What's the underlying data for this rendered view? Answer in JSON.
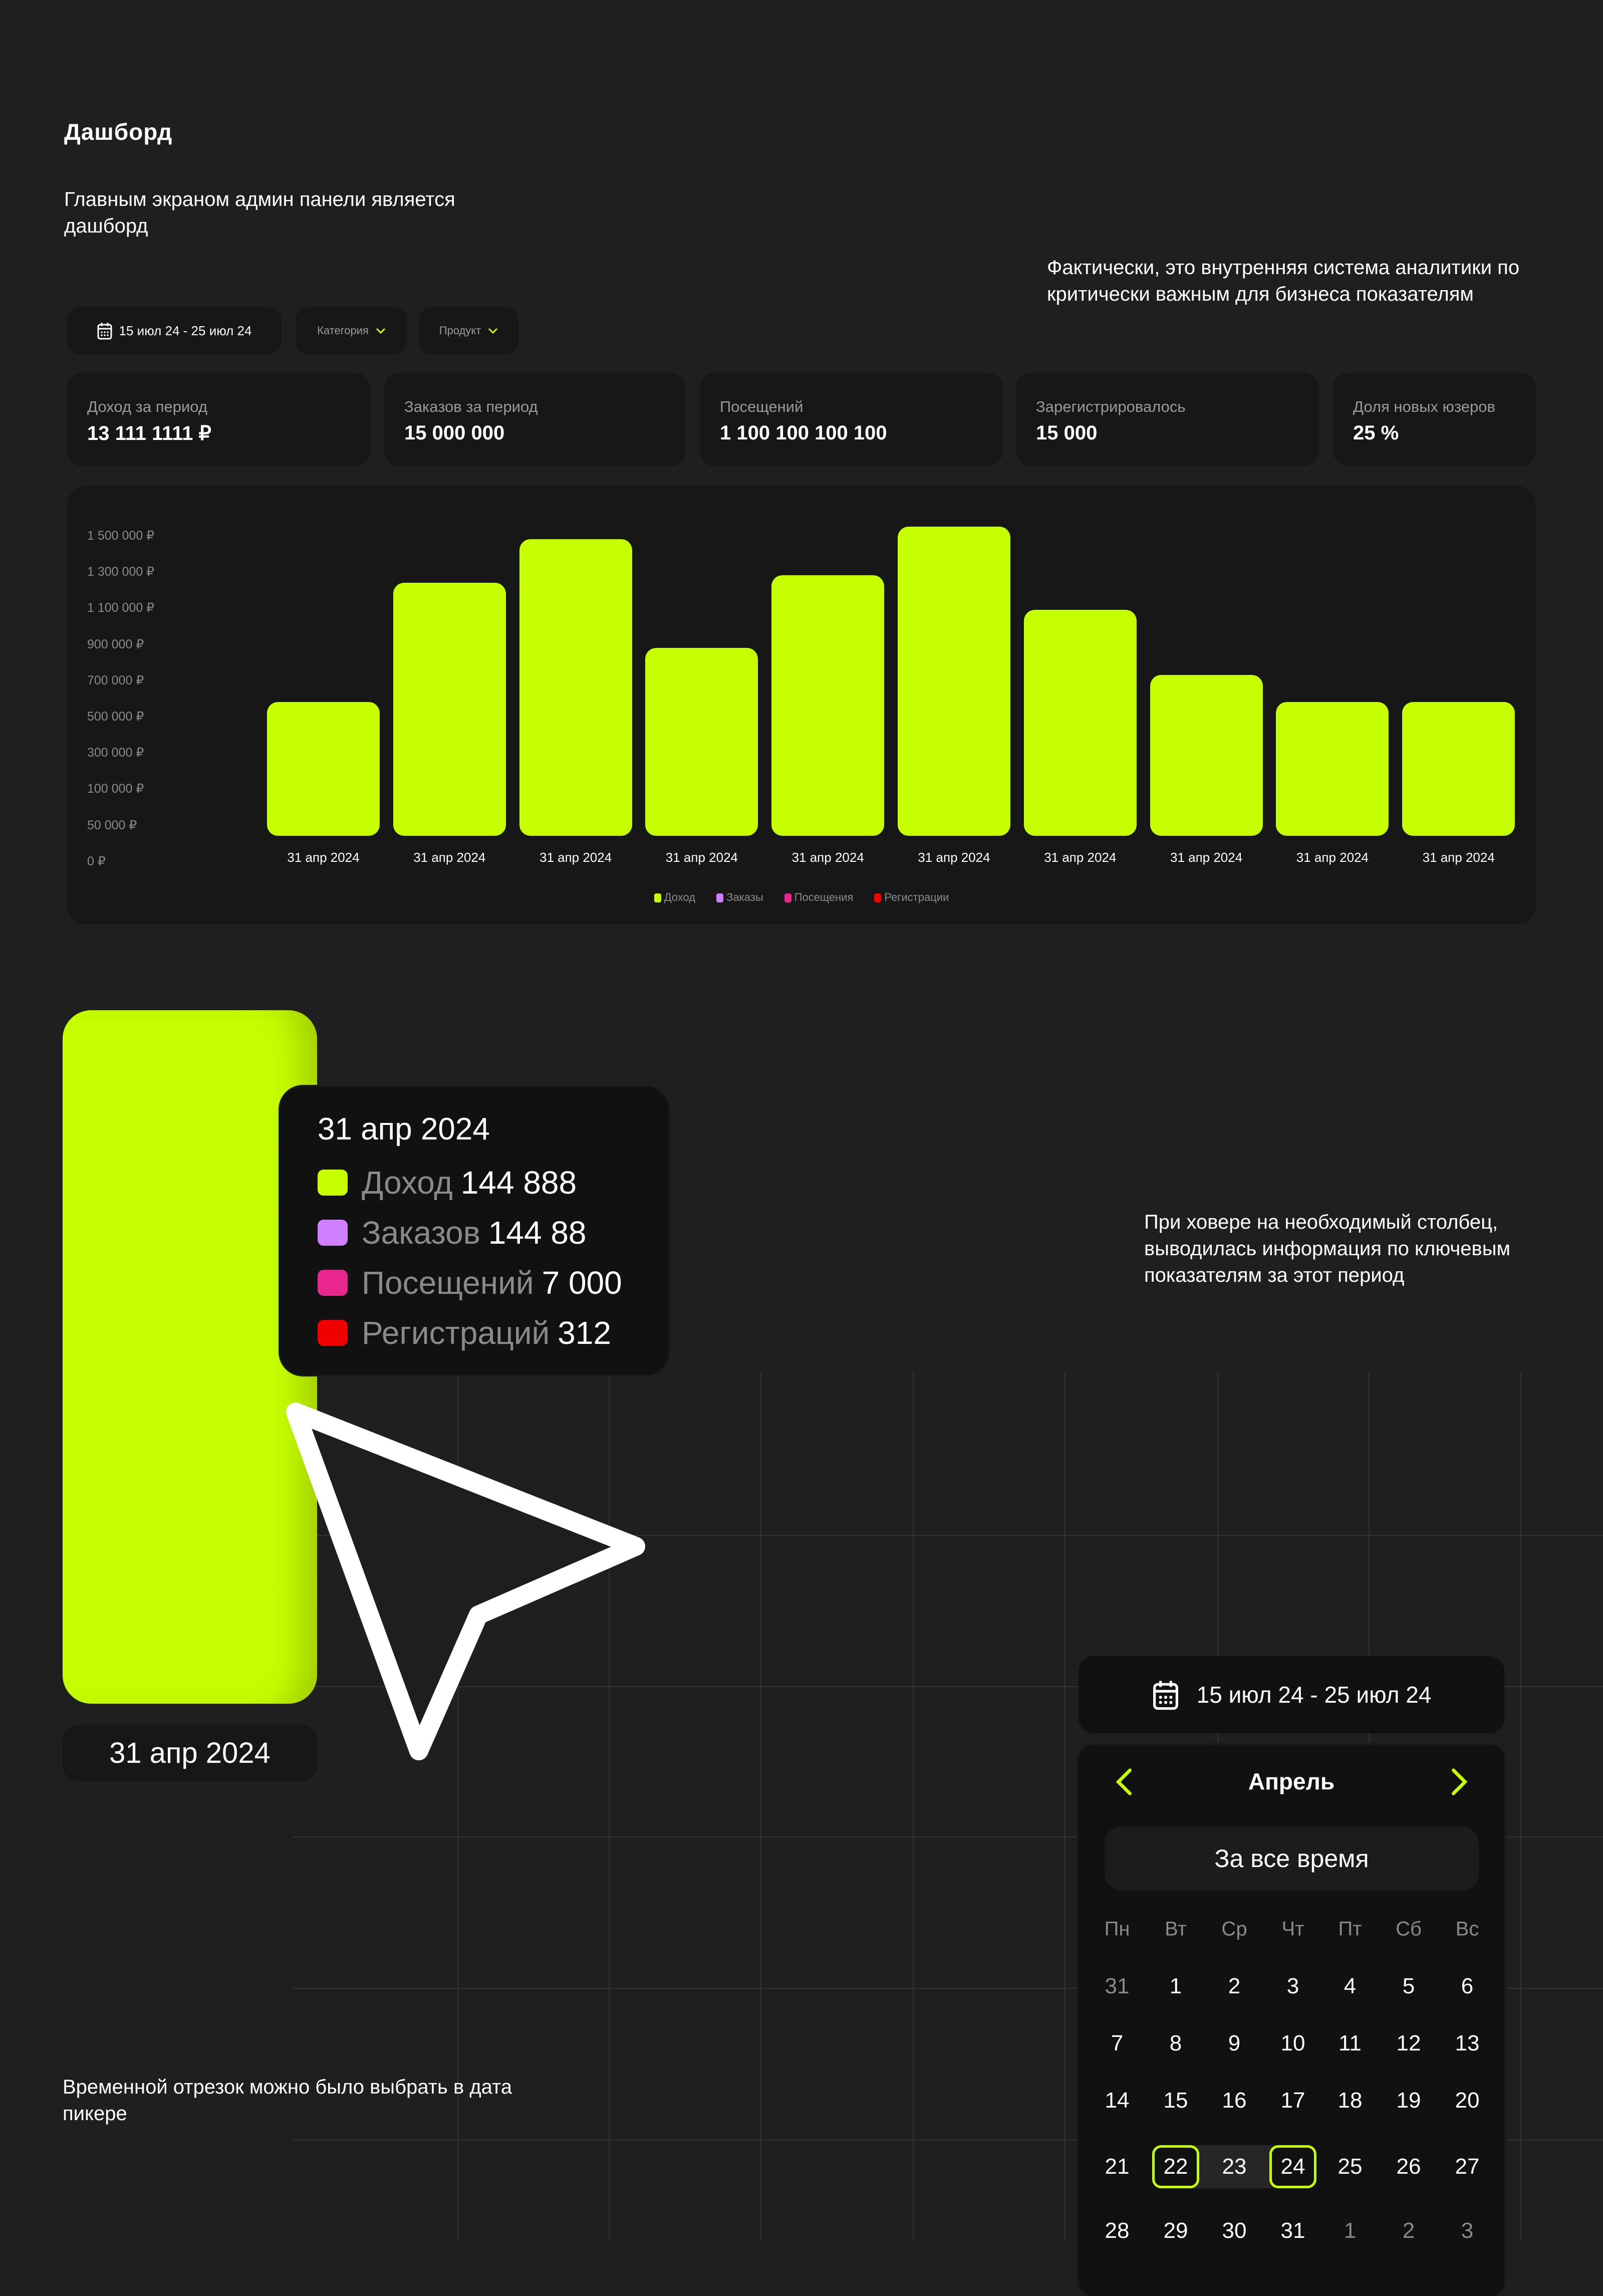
{
  "header": {
    "title": "Дашборд",
    "subtitle": "Главным экраном админ панели является дашборд",
    "note_right": "Фактически, это внутренняя система аналитики по критически важным для бизнеса показателям"
  },
  "filters": {
    "date_range": "15 июл 24 - 25 июл 24",
    "category": "Категория",
    "product": "Продукт"
  },
  "kpis": [
    {
      "label": "Доход за период",
      "value": "13 111 1111 ₽"
    },
    {
      "label": "Заказов за период",
      "value": "15 000 000"
    },
    {
      "label": "Посещений",
      "value": "1 100 100 100 100"
    },
    {
      "label": "Зарегистрировалось",
      "value": "15 000"
    },
    {
      "label": "Доля новых юзеров",
      "value": "25 %"
    }
  ],
  "colors": {
    "accent": "#c6ff00",
    "orders": "#d080ff",
    "visits": "#e8268e",
    "registrations": "#f20000"
  },
  "chart_data": {
    "type": "bar",
    "categories": [
      "31 апр 2024",
      "31 апр 2024",
      "31 апр 2024",
      "31 апр 2024",
      "31 апр 2024",
      "31 апр 2024",
      "31 апр 2024",
      "31 апр 2024",
      "31 апр 2024",
      "31 апр 2024"
    ],
    "series": [
      {
        "name": "Доход",
        "values": [
          580000,
          1240000,
          1480000,
          880000,
          1280000,
          1550000,
          1090000,
          730000,
          580000,
          580000
        ]
      }
    ],
    "y_ticks": [
      1500000,
      1300000,
      1100000,
      900000,
      700000,
      500000,
      300000,
      100000,
      50000,
      0
    ],
    "y_tick_labels": [
      "1 500 000 ₽",
      "1 300 000 ₽",
      "1 100 000 ₽",
      "900 000 ₽",
      "700 000 ₽",
      "500 000 ₽",
      "300 000 ₽",
      "100 000 ₽",
      "50 000 ₽",
      "0 ₽"
    ],
    "legend": [
      "Доход",
      "Заказы",
      "Посещения",
      "Регистрации"
    ],
    "legend_placement": "bottom",
    "grid": false
  },
  "hover": {
    "bar_label": "31 апр 2024",
    "tooltip": {
      "date": "31 апр 2024",
      "rows": [
        {
          "label": "Доход",
          "value": "144 888"
        },
        {
          "label": "Заказов",
          "value": "144 88"
        },
        {
          "label": "Посещений",
          "value": "7 000"
        },
        {
          "label": "Регистраций",
          "value": "312"
        }
      ]
    },
    "note": "При ховере на необходимый столбец, выводилась информация по ключевым показателям за этот период"
  },
  "datepicker": {
    "note": "Временной отрезок можно было выбрать в дата пикере",
    "button_label": "15 июл 24 - 25 июл 24",
    "month": "Апрель",
    "all_time": "За все время",
    "weekdays": [
      "Пн",
      "Вт",
      "Ср",
      "Чт",
      "Пт",
      "Сб",
      "Вс"
    ],
    "weeks": [
      [
        {
          "d": "31",
          "muted": true
        },
        {
          "d": "1"
        },
        {
          "d": "2"
        },
        {
          "d": "3"
        },
        {
          "d": "4"
        },
        {
          "d": "5"
        },
        {
          "d": "6"
        }
      ],
      [
        {
          "d": "7"
        },
        {
          "d": "8"
        },
        {
          "d": "9"
        },
        {
          "d": "10"
        },
        {
          "d": "11"
        },
        {
          "d": "12"
        },
        {
          "d": "13"
        }
      ],
      [
        {
          "d": "14"
        },
        {
          "d": "15"
        },
        {
          "d": "16"
        },
        {
          "d": "17"
        },
        {
          "d": "18"
        },
        {
          "d": "19"
        },
        {
          "d": "20"
        }
      ],
      [
        {
          "d": "21"
        },
        {
          "d": "22",
          "selected": true
        },
        {
          "d": "23",
          "in_range": true
        },
        {
          "d": "24",
          "selected": true
        },
        {
          "d": "25"
        },
        {
          "d": "26"
        },
        {
          "d": "27"
        }
      ],
      [
        {
          "d": "28"
        },
        {
          "d": "29"
        },
        {
          "d": "30"
        },
        {
          "d": "31"
        },
        {
          "d": "1",
          "muted": true
        },
        {
          "d": "2",
          "muted": true
        },
        {
          "d": "3",
          "muted": true
        }
      ]
    ]
  }
}
